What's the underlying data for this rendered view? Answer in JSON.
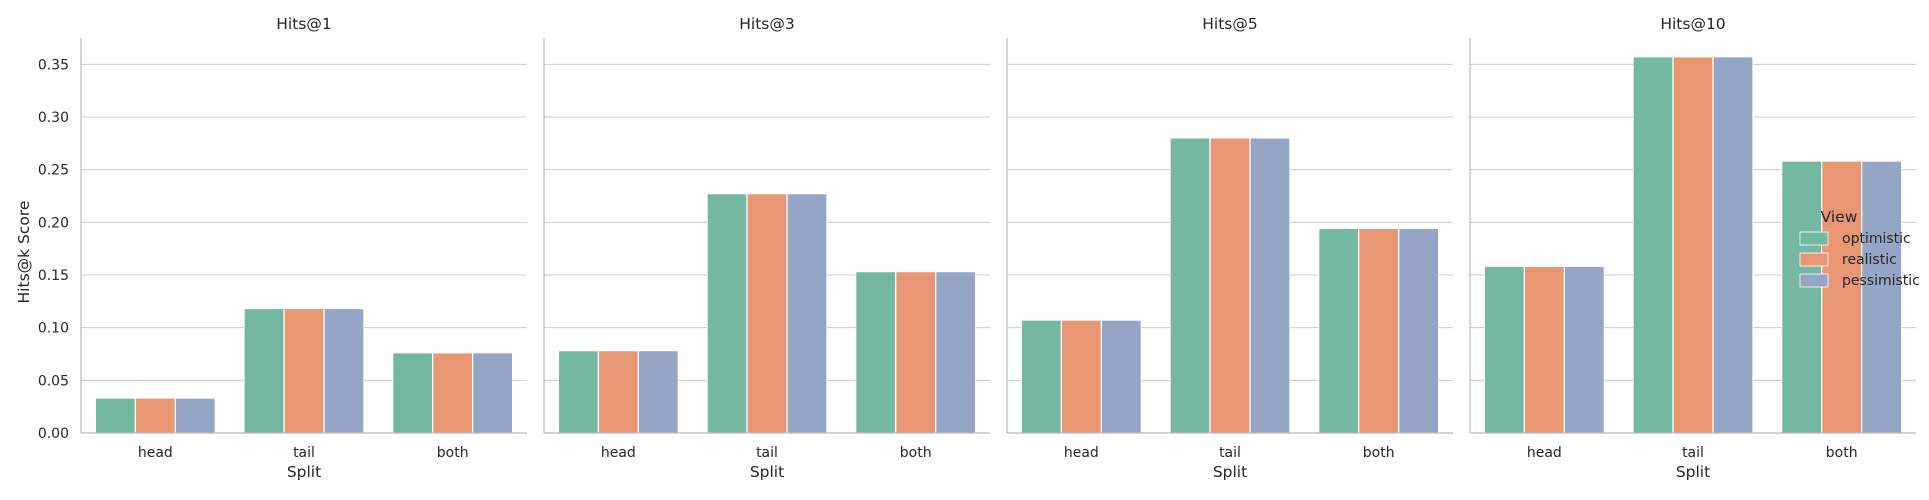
{
  "chart_data": {
    "type": "bar",
    "ylabel": "Hits@k Score",
    "xlabel": "Split",
    "ylim": [
      0,
      0.375
    ],
    "yticks": [
      "0.00",
      "0.05",
      "0.10",
      "0.15",
      "0.20",
      "0.25",
      "0.30",
      "0.35"
    ],
    "grid": "horizontal",
    "legend_title": "View",
    "legend_position": "right",
    "categories": [
      "head",
      "tail",
      "both"
    ],
    "colors": {
      "optimistic": "#74b8a1",
      "realistic": "#e99675",
      "pessimistic": "#95a5c6"
    },
    "panels": [
      {
        "title": "Hits@1",
        "series": [
          {
            "name": "optimistic",
            "values": [
              0.033,
              0.118,
              0.076
            ]
          },
          {
            "name": "realistic",
            "values": [
              0.033,
              0.118,
              0.076
            ]
          },
          {
            "name": "pessimistic",
            "values": [
              0.033,
              0.118,
              0.076
            ]
          }
        ]
      },
      {
        "title": "Hits@3",
        "series": [
          {
            "name": "optimistic",
            "values": [
              0.078,
              0.227,
              0.153
            ]
          },
          {
            "name": "realistic",
            "values": [
              0.078,
              0.227,
              0.153
            ]
          },
          {
            "name": "pessimistic",
            "values": [
              0.078,
              0.227,
              0.153
            ]
          }
        ]
      },
      {
        "title": "Hits@5",
        "series": [
          {
            "name": "optimistic",
            "values": [
              0.107,
              0.28,
              0.194
            ]
          },
          {
            "name": "realistic",
            "values": [
              0.107,
              0.28,
              0.194
            ]
          },
          {
            "name": "pessimistic",
            "values": [
              0.107,
              0.28,
              0.194
            ]
          }
        ]
      },
      {
        "title": "Hits@10",
        "series": [
          {
            "name": "optimistic",
            "values": [
              0.158,
              0.357,
              0.258
            ]
          },
          {
            "name": "realistic",
            "values": [
              0.158,
              0.357,
              0.258
            ]
          },
          {
            "name": "pessimistic",
            "values": [
              0.158,
              0.357,
              0.258
            ]
          }
        ]
      }
    ]
  }
}
